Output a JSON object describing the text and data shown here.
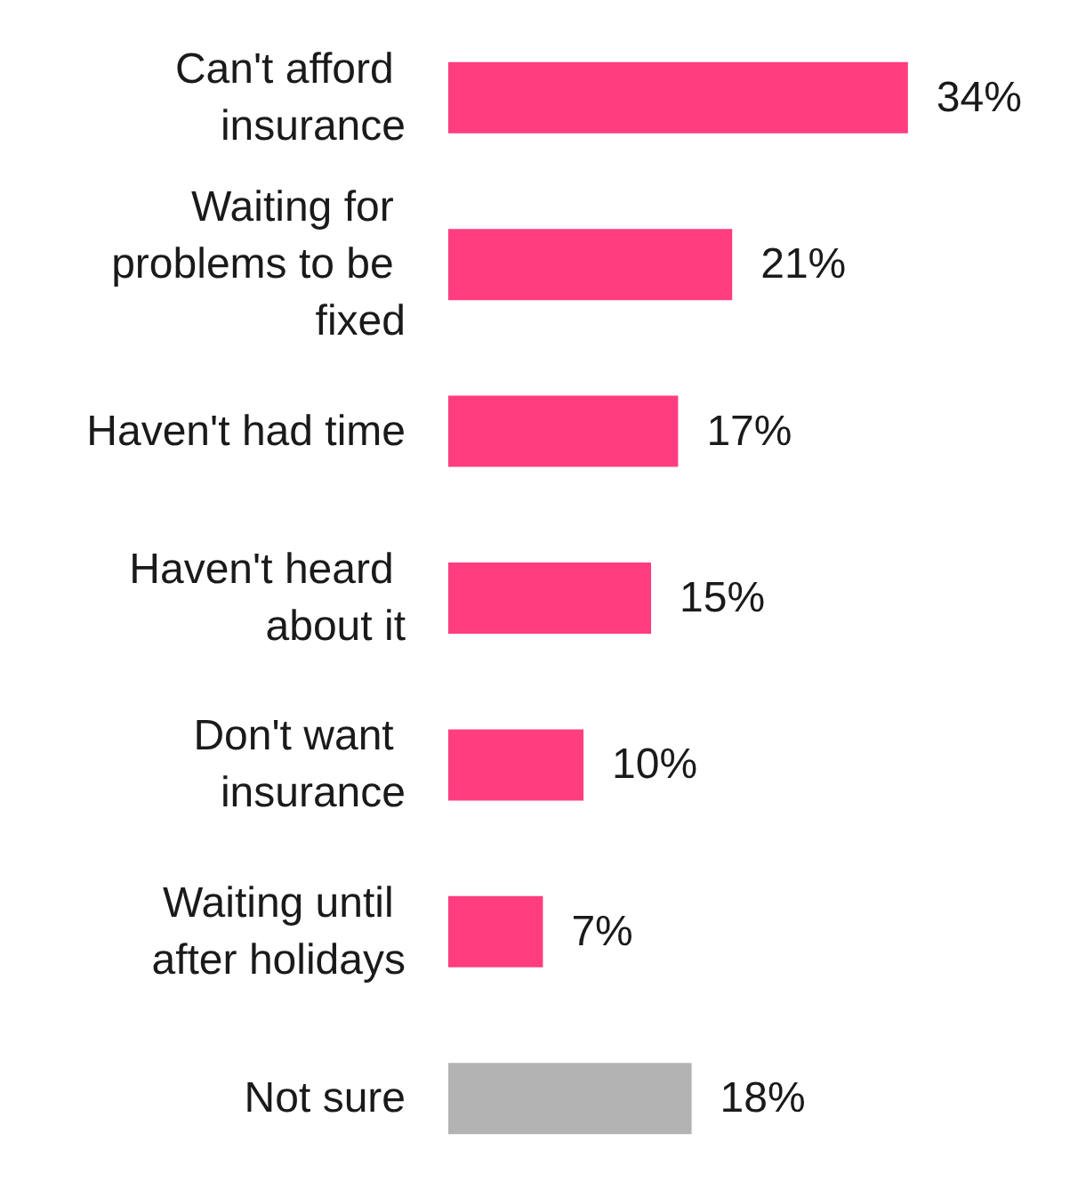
{
  "chart_data": {
    "type": "bar",
    "orientation": "horizontal",
    "categories": [
      "Can't afford insurance",
      "Waiting for problems to be fixed",
      "Haven't had time",
      "Haven't heard about it",
      "Don't want insurance",
      "Waiting until after holidays",
      "Not sure"
    ],
    "values": [
      34,
      21,
      17,
      15,
      10,
      7,
      18
    ],
    "colors": [
      "#ff3d7f",
      "#ff3d7f",
      "#ff3d7f",
      "#ff3d7f",
      "#ff3d7f",
      "#ff3d7f",
      "#b3b3b3"
    ],
    "value_labels": [
      "34%",
      "21%",
      "17%",
      "15%",
      "10%",
      "7%",
      "18%"
    ]
  }
}
